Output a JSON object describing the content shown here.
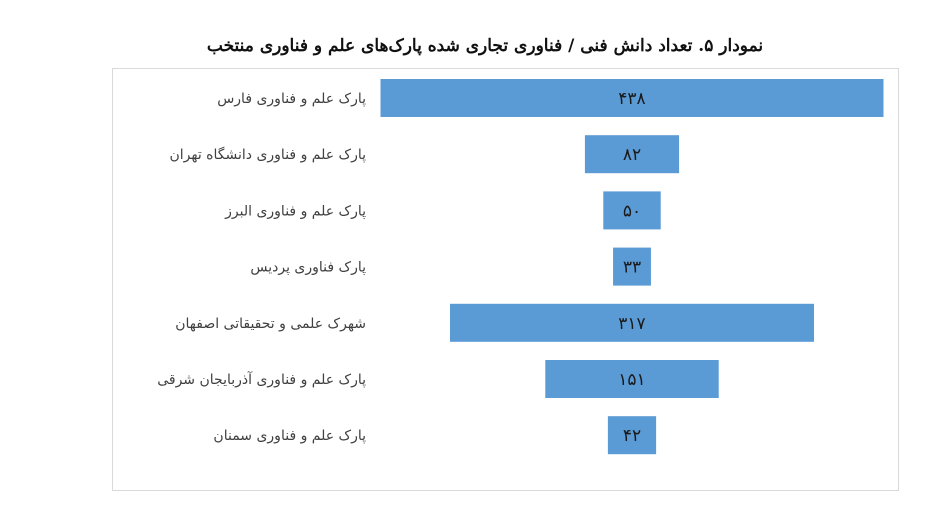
{
  "chart_data": {
    "type": "bar",
    "orientation": "horizontal-centered",
    "title": "نمودار ۵. تعداد دانش فنی / فناوری تجاری شده پارک‌های علم و فناوری منتخب",
    "categories": [
      "پارک علم و فناوری فارس",
      "پارک علم و فناوری دانشگاه تهران",
      "پارک علم و فناوری  البرز",
      "پارک فناوری پردیس",
      "شهرک علمی و تحقیقاتی اصفهان",
      "پارک  علم و فناوری آذربایجان شرقی",
      "پارک علم و فناوری  سمنان"
    ],
    "values": [
      438,
      82,
      50,
      33,
      317,
      151,
      42
    ],
    "value_labels": [
      "۴۳۸",
      "۸۲",
      "۵۰",
      "۳۳",
      "۳۱۷",
      "۱۵۱",
      "۴۲"
    ],
    "bar_color": "#5B9BD5",
    "grid": false,
    "legend": "none"
  }
}
